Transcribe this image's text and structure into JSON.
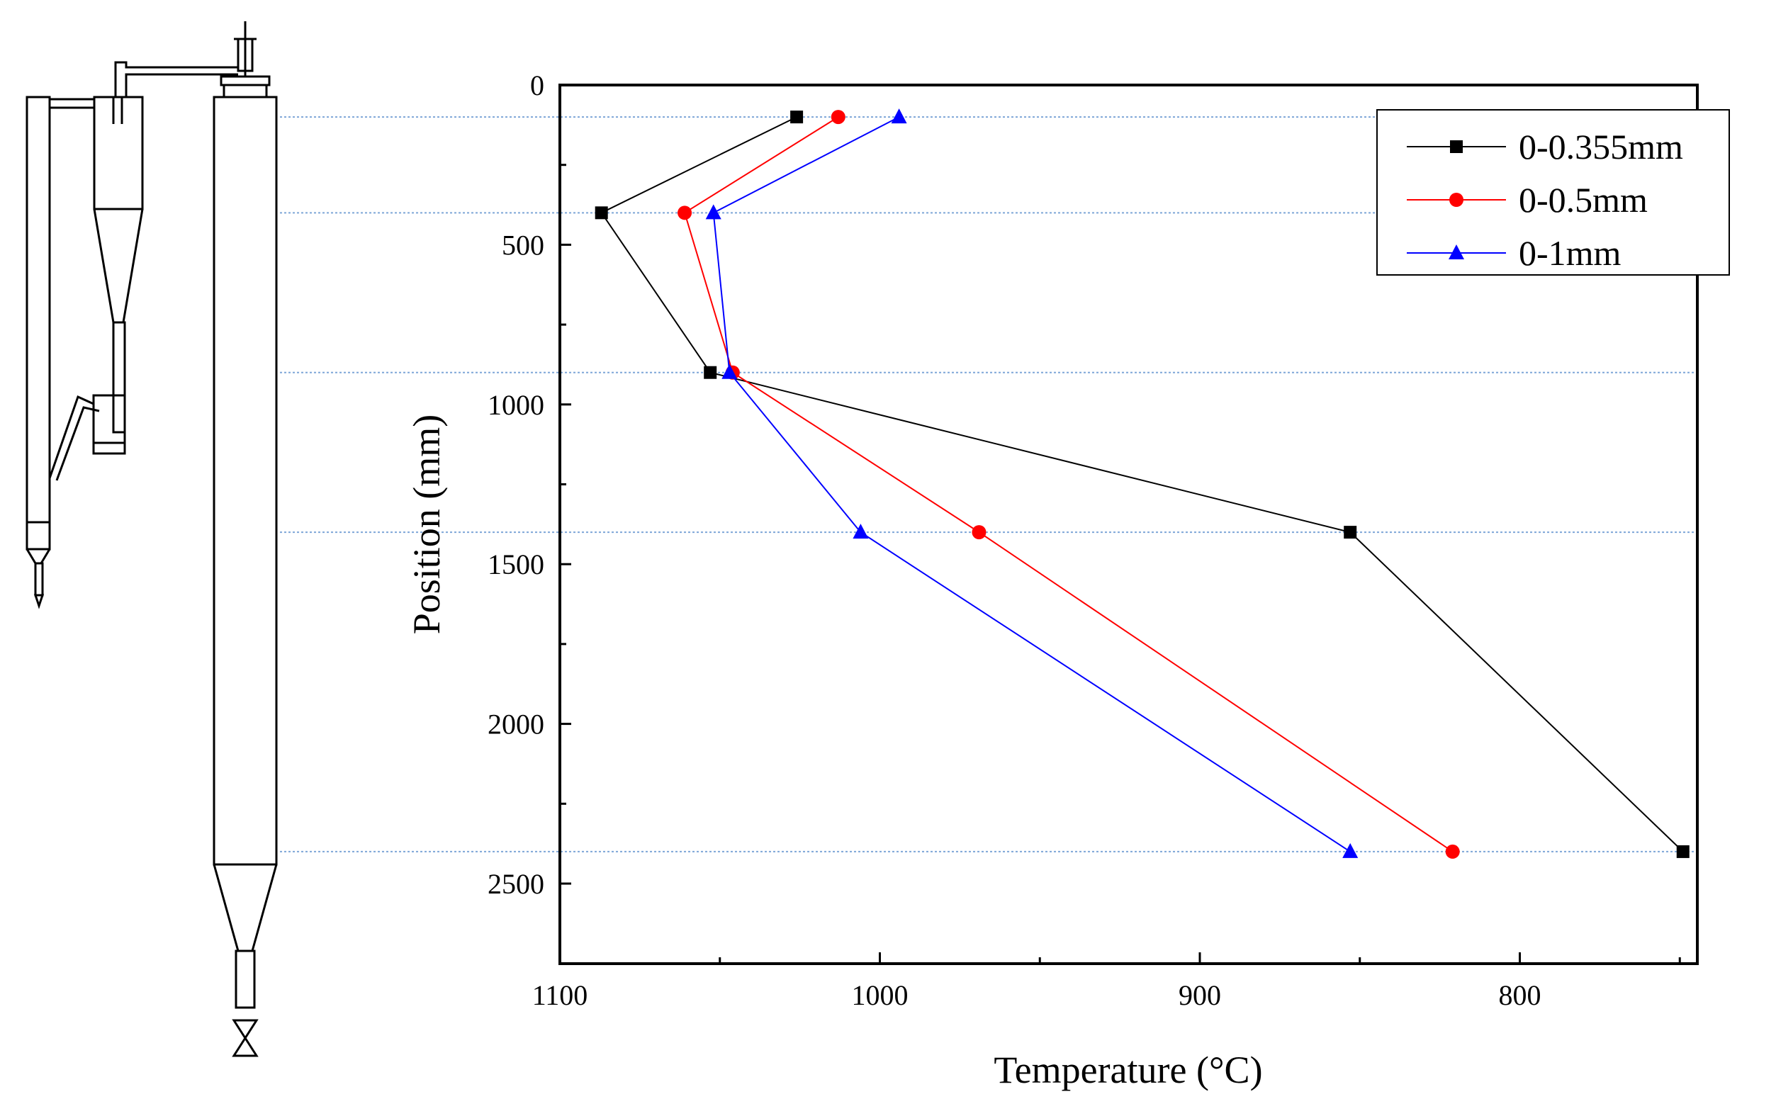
{
  "chart_data": {
    "type": "line",
    "title": "",
    "xlabel": "Temperature (°C)",
    "ylabel": "Position (mm)",
    "x_axis": {
      "range": [
        1100,
        745
      ],
      "reversed": true,
      "ticks": [
        1100,
        1000,
        900,
        800
      ],
      "tick_labels": [
        "1100",
        "1000",
        "900",
        "800"
      ]
    },
    "y_axis": {
      "range": [
        0,
        2750
      ],
      "inverted": true,
      "ticks": [
        0,
        500,
        1000,
        1500,
        2000,
        2500
      ],
      "tick_labels": [
        "0",
        "500",
        "1000",
        "1500",
        "2000",
        "2500"
      ]
    },
    "legend_position": "top-right",
    "guide_positions": [
      100,
      400,
      900,
      1400,
      2400
    ],
    "series": [
      {
        "name": "0-0.355mm",
        "color": "#000000",
        "marker": "square",
        "points": [
          {
            "temperature": 1026,
            "position": 100
          },
          {
            "temperature": 1087,
            "position": 400
          },
          {
            "temperature": 1053,
            "position": 900
          },
          {
            "temperature": 853,
            "position": 1400
          },
          {
            "temperature": 749,
            "position": 2400
          }
        ]
      },
      {
        "name": "0-0.5mm",
        "color": "#ff0000",
        "marker": "circle",
        "points": [
          {
            "temperature": 1013,
            "position": 100
          },
          {
            "temperature": 1061,
            "position": 400
          },
          {
            "temperature": 1046,
            "position": 900
          },
          {
            "temperature": 969,
            "position": 1400
          },
          {
            "temperature": 821,
            "position": 2400
          }
        ]
      },
      {
        "name": "0-1mm",
        "color": "#0000ff",
        "marker": "triangle",
        "points": [
          {
            "temperature": 994,
            "position": 100
          },
          {
            "temperature": 1052,
            "position": 400
          },
          {
            "temperature": 1047,
            "position": 900
          },
          {
            "temperature": 1006,
            "position": 1400
          },
          {
            "temperature": 853,
            "position": 2400
          }
        ]
      }
    ]
  },
  "colors": {
    "axis": "#000000",
    "guide_line": "#7ea6d8",
    "reactor_outline": "#000000"
  }
}
